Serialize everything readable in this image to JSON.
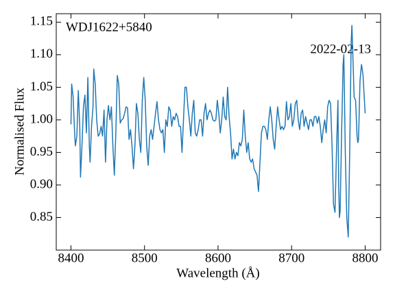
{
  "chart_data": {
    "type": "line",
    "xlabel": "Wavelength (Å)",
    "ylabel": "Normalised Flux",
    "annotations": [
      "WDJ1622+5840",
      "2022-02-13"
    ],
    "x": [
      8400,
      8401,
      8403,
      8405,
      8406,
      8408,
      8410,
      8412,
      8413,
      8415,
      8417,
      8419,
      8421,
      8423,
      8425,
      8426,
      8428,
      8430,
      8431,
      8433,
      8435,
      8437,
      8439,
      8441,
      8443,
      8445,
      8447,
      8449,
      8451,
      8453,
      8455,
      8457,
      8459,
      8461,
      8463,
      8465,
      8467,
      8469,
      8471,
      8473,
      8475,
      8477,
      8479,
      8481,
      8483,
      8485,
      8487,
      8489,
      8491,
      8493,
      8495,
      8497,
      8499,
      8501,
      8503,
      8505,
      8507,
      8509,
      8511,
      8513,
      8515,
      8517,
      8519,
      8521,
      8523,
      8525,
      8527,
      8529,
      8531,
      8533,
      8535,
      8537,
      8539,
      8541,
      8543,
      8545,
      8547,
      8549,
      8551,
      8553,
      8555,
      8557,
      8559,
      8561,
      8563,
      8565,
      8567,
      8569,
      8571,
      8573,
      8575,
      8577,
      8579,
      8581,
      8583,
      8585,
      8587,
      8589,
      8591,
      8593,
      8595,
      8597,
      8599,
      8601,
      8603,
      8605,
      8607,
      8609,
      8611,
      8613,
      8615,
      8617,
      8619,
      8621,
      8623,
      8625,
      8627,
      8629,
      8631,
      8633,
      8635,
      8637,
      8639,
      8641,
      8643,
      8645,
      8647,
      8649,
      8651,
      8653,
      8655,
      8657,
      8659,
      8661,
      8663,
      8665,
      8667,
      8669,
      8671,
      8673,
      8675,
      8677,
      8679,
      8681,
      8683,
      8685,
      8687,
      8689,
      8691,
      8693,
      8695,
      8697,
      8699,
      8701,
      8703,
      8705,
      8707,
      8709,
      8711,
      8713,
      8715,
      8717,
      8719,
      8721,
      8723,
      8725,
      8727,
      8729,
      8731,
      8733,
      8735,
      8737,
      8739,
      8741,
      8743,
      8745,
      8747,
      8749,
      8751,
      8753,
      8755,
      8757,
      8759,
      8761,
      8763,
      8764,
      8765,
      8766,
      8768,
      8770,
      8771,
      8773,
      8775,
      8777,
      8779,
      8781,
      8782,
      8783,
      8785,
      8787,
      8789,
      8790,
      8791,
      8793,
      8795,
      8797,
      8800
    ],
    "series": [
      {
        "name": "flux",
        "color": "#1f77b4",
        "values": [
          0.993,
          1.055,
          1.035,
          0.98,
          0.96,
          0.975,
          1.045,
          0.99,
          0.912,
          0.96,
          1.02,
          1.038,
          0.98,
          1.065,
          0.96,
          0.935,
          0.99,
          1.02,
          1.078,
          1.055,
          1.0,
          0.975,
          0.978,
          0.99,
          0.975,
          1.015,
          0.935,
          1.0,
          1.022,
          1.0,
          1.02,
          0.96,
          0.915,
          0.98,
          1.068,
          1.055,
          0.995,
          1.0,
          1.002,
          1.01,
          1.02,
          1.018,
          0.97,
          0.985,
          0.96,
          0.925,
          0.96,
          1.025,
          1.01,
          0.97,
          0.95,
          1.03,
          1.065,
          1.03,
          0.96,
          0.93,
          0.975,
          0.985,
          0.97,
          0.99,
          1.01,
          1.028,
          1.0,
          0.985,
          0.98,
          0.985,
          0.95,
          1.0,
          0.99,
          1.02,
          1.015,
          0.99,
          1.005,
          1.0,
          1.01,
          1.005,
          0.99,
          0.99,
          0.95,
          1.0,
          1.05,
          1.05,
          1.02,
          1.0,
          0.975,
          1.01,
          1.03,
          0.98,
          0.975,
          0.985,
          1.0,
          1.0,
          0.975,
          1.01,
          1.025,
          1.0,
          1.01,
          1.015,
          1.01,
          1.0,
          0.998,
          1.0,
          1.03,
          1.01,
          0.98,
          1.0,
          1.035,
          1.005,
          1.0,
          1.05,
          1.005,
          0.98,
          0.94,
          0.955,
          0.94,
          0.95,
          0.945,
          0.965,
          0.96,
          0.97,
          1.015,
          0.975,
          0.95,
          0.965,
          0.94,
          0.935,
          0.94,
          0.925,
          0.92,
          0.915,
          0.89,
          0.935,
          0.98,
          0.99,
          0.99,
          0.985,
          0.97,
          1.0,
          1.02,
          1.0,
          0.97,
          0.955,
          0.99,
          1.02,
          1.0,
          0.985,
          0.99,
          0.985,
          0.99,
          1.028,
          1.0,
          1.005,
          1.025,
          0.99,
          1.0,
          1.025,
          1.03,
          1.0,
          0.985,
          1.01,
          1.015,
          0.99,
          1.005,
          0.995,
          0.985,
          1.0,
          1.0,
          0.99,
          1.005,
          1.005,
          0.995,
          1.005,
          0.99,
          0.965,
          0.985,
          1.0,
          0.98,
          1.02,
          1.03,
          1.025,
          0.96,
          0.87,
          0.858,
          0.95,
          1.03,
          0.9,
          0.85,
          0.86,
          0.98,
          1.085,
          1.1,
          0.95,
          0.85,
          0.82,
          0.95,
          1.12,
          1.145,
          1.11,
          1.035,
          1.03,
          0.975,
          0.965,
          0.97,
          1.06,
          1.085,
          1.07,
          1.01
        ]
      }
    ],
    "xlim": [
      8380,
      8821
    ],
    "ylim": [
      0.8,
      1.163
    ],
    "xticks": [
      8400,
      8500,
      8600,
      8700,
      8800
    ],
    "yticks": [
      0.85,
      {
        "value": 0.9,
        "label": "0.90"
      },
      0.95,
      {
        "value": 1.0,
        "label": "1.00"
      },
      1.05,
      {
        "value": 1.1,
        "label": "1.10"
      },
      1.15
    ]
  }
}
